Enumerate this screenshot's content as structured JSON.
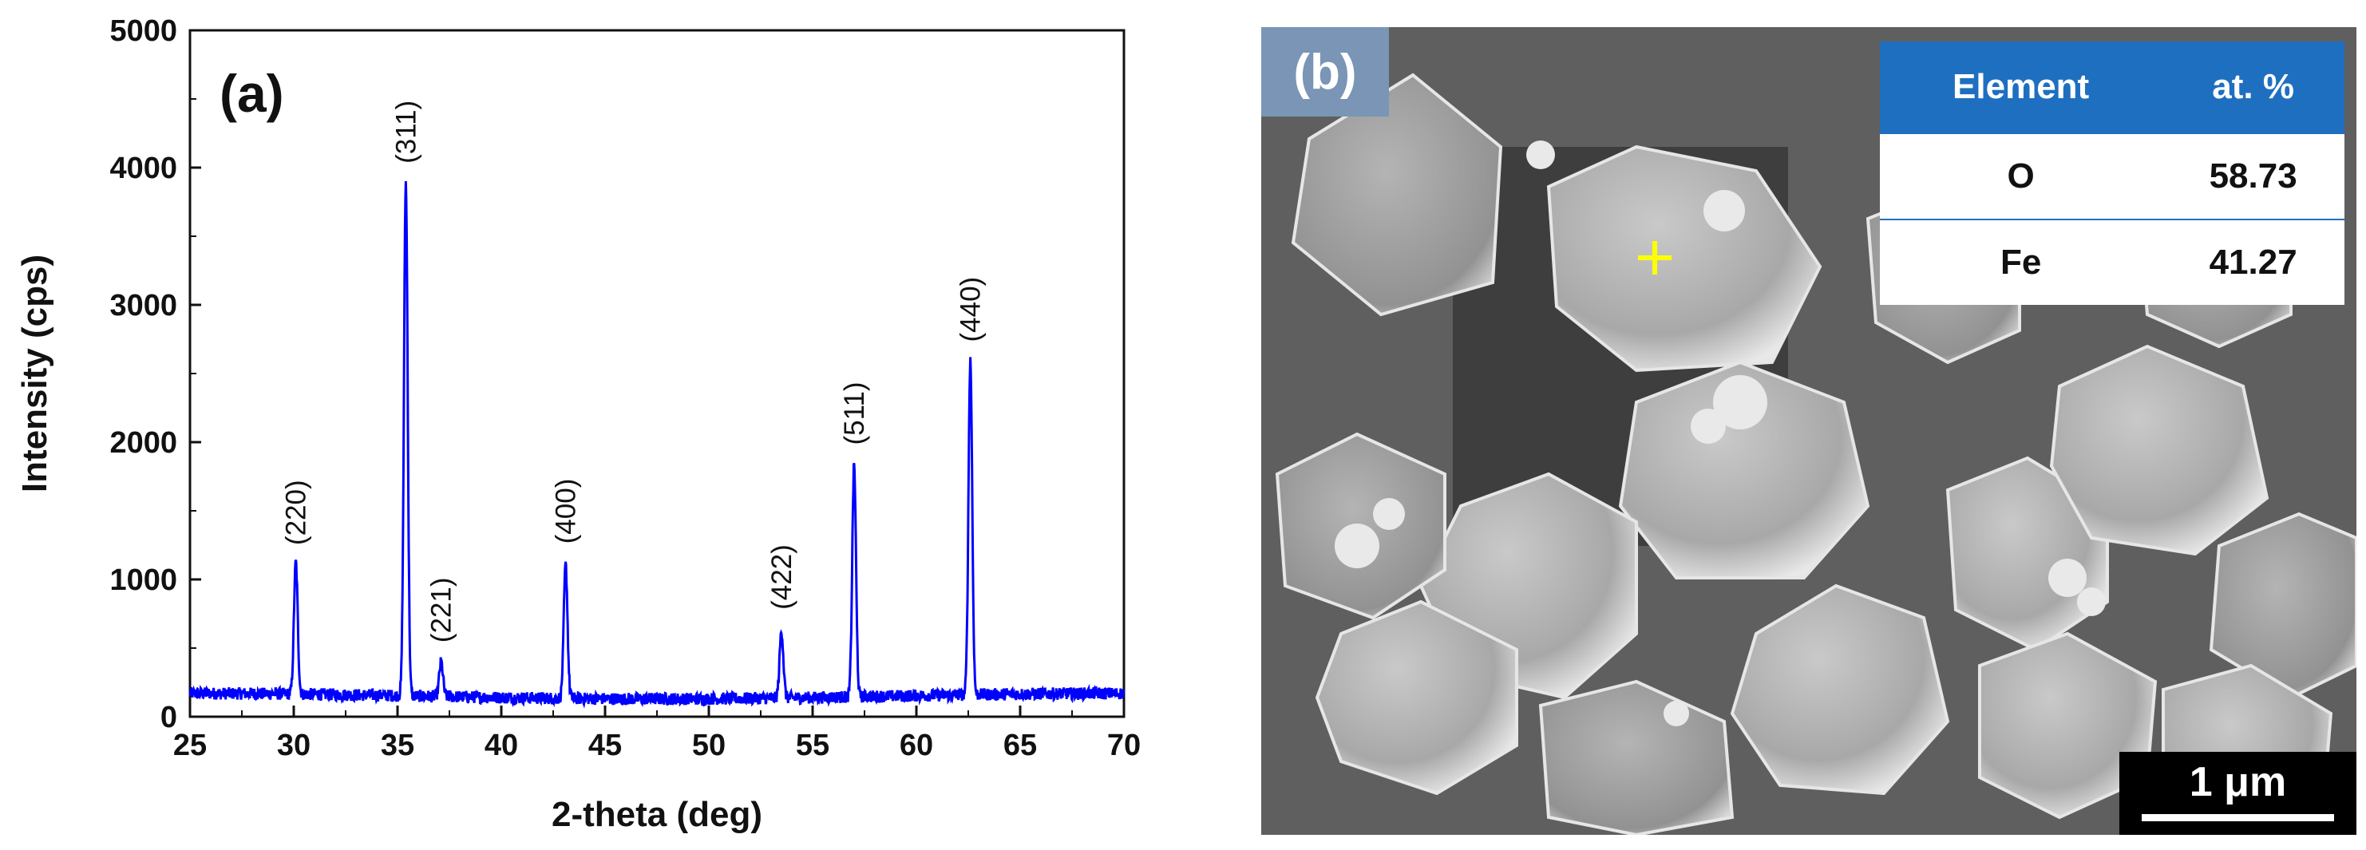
{
  "chart_data": {
    "type": "line",
    "panel_label": "(a)",
    "xlabel": "2-theta (deg)",
    "ylabel": "Intensity (cps)",
    "xlim": [
      25,
      70
    ],
    "ylim": [
      0,
      5000
    ],
    "x_ticks": [
      25,
      30,
      35,
      40,
      45,
      50,
      55,
      60,
      65,
      70
    ],
    "y_ticks": [
      0,
      1000,
      2000,
      3000,
      4000,
      5000
    ],
    "line_color": "#0000ff",
    "baseline": 150,
    "peaks": [
      {
        "label": "(220)",
        "x": 30.1,
        "y": 1110
      },
      {
        "label": "(311)",
        "x": 35.4,
        "y": 3890
      },
      {
        "label": "(221)",
        "x": 37.1,
        "y": 400
      },
      {
        "label": "(400)",
        "x": 43.1,
        "y": 1120
      },
      {
        "label": "(422)",
        "x": 53.5,
        "y": 640
      },
      {
        "label": "(511)",
        "x": 57.0,
        "y": 1840
      },
      {
        "label": "(440)",
        "x": 62.6,
        "y": 2590
      }
    ]
  },
  "sem": {
    "panel_label": "(b)",
    "table": {
      "headers": [
        "Element",
        "at. %"
      ],
      "rows": [
        {
          "element": "O",
          "value": "58.73"
        },
        {
          "element": "Fe",
          "value": "41.27"
        }
      ]
    },
    "scale_bar": "1 μm",
    "crosshair_color": "#ffff00",
    "header_color": "#1f6fc0",
    "label_box_color": "#7a95b5"
  }
}
